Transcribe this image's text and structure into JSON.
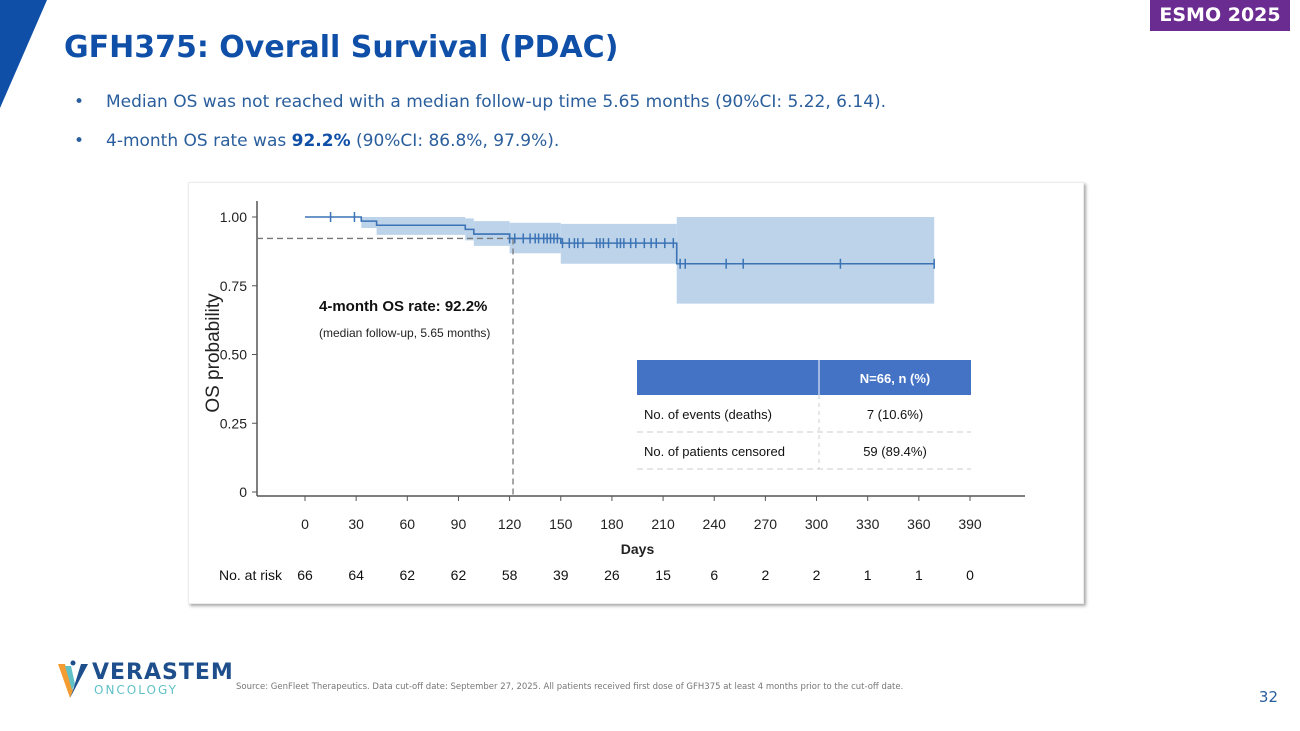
{
  "slide": {
    "title": "GFH375: Overall Survival (PDAC)",
    "badge": "ESMO 2025",
    "bullets": [
      {
        "text": "Median OS was not reached with a median follow-up time 5.65 months (90%CI: 5.22, 6.14).",
        "bold": "",
        "rest": ""
      },
      {
        "text": "4-month OS rate was ",
        "bold": "92.2%",
        "rest": " (90%CI: 86.8%, 97.9%)."
      }
    ],
    "source": "Source: GenFleet Therapeutics. Data cut-off date: September 27, 2025. All patients received first dose of GFH375 at least 4 months prior to the cut-off date.",
    "page_number": "32",
    "logo": {
      "name": "VERASTEM",
      "sub": "ONCOLOGY"
    },
    "colors": {
      "title": "#0f4fa8",
      "badge": "#6b2c91",
      "curve": "#3b73b5",
      "band": "#bcd3ea",
      "table_header": "#4472c4"
    }
  },
  "chart_data": {
    "type": "line",
    "subtype": "kaplan-meier",
    "xlabel": "Days",
    "ylabel": "OS probability",
    "xlim": [
      0,
      390
    ],
    "ylim": [
      0,
      1
    ],
    "xticks": [
      0,
      30,
      60,
      90,
      120,
      150,
      180,
      210,
      240,
      270,
      300,
      330,
      360,
      390
    ],
    "yticks": [
      {
        "v": 0,
        "label": "0"
      },
      {
        "v": 0.25,
        "label": "0.25"
      },
      {
        "v": 0.5,
        "label": "0.50"
      },
      {
        "v": 0.75,
        "label": "0.75"
      },
      {
        "v": 1.0,
        "label": "1.00"
      }
    ],
    "steps": [
      {
        "x": 0,
        "y": 1.0,
        "lo": 1.0,
        "hi": 1.0
      },
      {
        "x": 33,
        "y": 0.985,
        "lo": 0.96,
        "hi": 1.0
      },
      {
        "x": 42,
        "y": 0.97,
        "lo": 0.935,
        "hi": 1.0
      },
      {
        "x": 94,
        "y": 0.955,
        "lo": 0.915,
        "hi": 0.995
      },
      {
        "x": 99,
        "y": 0.938,
        "lo": 0.895,
        "hi": 0.985
      },
      {
        "x": 120,
        "y": 0.922,
        "lo": 0.868,
        "hi": 0.979
      },
      {
        "x": 150,
        "y": 0.905,
        "lo": 0.83,
        "hi": 0.975
      },
      {
        "x": 218,
        "y": 0.83,
        "lo": 0.685,
        "hi": 1.0
      }
    ],
    "end_x": 369,
    "censor_times": [
      15,
      29,
      120,
      123,
      128,
      132,
      135,
      137,
      140,
      142,
      144,
      146,
      148,
      151,
      155,
      158,
      160,
      163,
      171,
      173,
      175,
      178,
      183,
      185,
      187,
      191,
      194,
      199,
      203,
      206,
      211,
      216,
      220,
      223,
      247,
      257,
      314,
      369
    ],
    "reference": {
      "x": 122,
      "y": 0.922
    },
    "annotation": {
      "title": "4-month OS rate: 92.2%",
      "subtitle": "(median follow-up, 5.65 months)"
    },
    "table": {
      "header": [
        "",
        "N=66, n (%)"
      ],
      "rows": [
        [
          "No. of events (deaths)",
          "7 (10.6%)"
        ],
        [
          "No. of patients censored",
          "59  (89.4%)"
        ]
      ]
    },
    "risk_table": {
      "label": "No. at risk",
      "values": [
        66,
        64,
        62,
        62,
        58,
        39,
        26,
        15,
        6,
        2,
        2,
        1,
        1,
        0
      ]
    }
  }
}
